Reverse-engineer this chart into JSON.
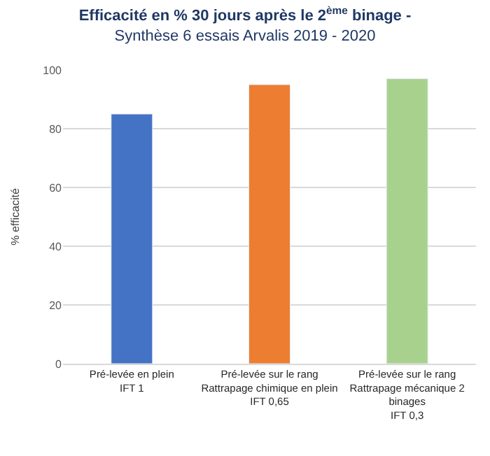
{
  "chart_data": {
    "type": "bar",
    "title": "Efficacité en % 30 jours après le 2$^{ème}$ binage -",
    "subtitle": "Synthèse 6 essais Arvalis 2019 - 2020",
    "ylabel": "% efficacité",
    "categories": [
      "Pré-levée en plein\nIFT 1",
      "Pré-levée sur le rang\nRattrapage chimique en plein\nIFT 0,65",
      "Pré-levée sur le rang\nRattrapage mécanique 2\nbinages\nIFT 0,3"
    ],
    "values": [
      85,
      95,
      97
    ],
    "colors": [
      "#4472c4",
      "#ed7d31",
      "#a9d18e"
    ],
    "ylim": [
      0,
      100
    ],
    "yticks": [
      0,
      20,
      40,
      60,
      80,
      100
    ],
    "grid": "y"
  }
}
